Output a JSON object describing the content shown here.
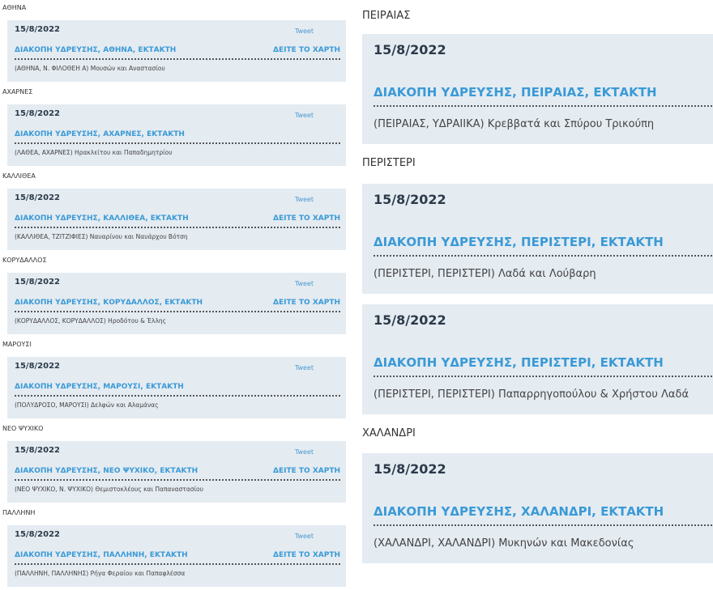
{
  "colors": {
    "accent": "#3a9ad6",
    "card_bg": "#e4ebf1",
    "date": "#2b3a4a"
  },
  "left": [
    {
      "area": "ΑΘΗΝΑ",
      "date": "15/8/2022",
      "tweet": "Tweet",
      "title": "ΔΙΑΚΟΠΗ ΥΔΡΕΥΣΗΣ, ΑΘΗΝΑ, ΕΚΤΑΚΤΗ",
      "map": "ΔΕΙΤΕ ΤΟ ΧΑΡΤΗ",
      "desc": "(ΑΘΗΝΑ, Ν. ΦΙΛΟΘΕΗ Α) Μουσών και Αναστασίου"
    },
    {
      "area": "ΑΧΑΡΝΕΣ",
      "date": "15/8/2022",
      "tweet": "Tweet",
      "title": "ΔΙΑΚΟΠΗ ΥΔΡΕΥΣΗΣ, ΑΧΑΡΝΕΣ, ΕΚΤΑΚΤΗ",
      "desc": "(ΛΑΘΕΑ, ΑΧΑΡΝΕΣ) Ηρακλείτου και Παπαδημητρίου"
    },
    {
      "area": "ΚΑΛΛΙΘΕΑ",
      "date": "15/8/2022",
      "tweet": "Tweet",
      "title": "ΔΙΑΚΟΠΗ ΥΔΡΕΥΣΗΣ, ΚΑΛΛΙΘΕΑ, ΕΚΤΑΚΤΗ",
      "map": "ΔΕΙΤΕ ΤΟ ΧΑΡΤΗ",
      "desc": "(ΚΑΛΛΙΘΕΑ, ΤΖΙΤΖΙΦΙΕΣ) Ναυαρίνου και Ναυάρχου Βότση"
    },
    {
      "area": "ΚΟΡΥΔΑΛΛΟΣ",
      "date": "15/8/2022",
      "tweet": "Tweet",
      "title": "ΔΙΑΚΟΠΗ ΥΔΡΕΥΣΗΣ, ΚΟΡΥΔΑΛΛΟΣ, ΕΚΤΑΚΤΗ",
      "map": "ΔΕΙΤΕ ΤΟ ΧΑΡΤΗ",
      "desc": "(ΚΟΡΥΔΑΛΛΟΣ, ΚΟΡΥΔΑΛΛΟΣ) Ηροδότου & Έλλης"
    },
    {
      "area": "ΜΑΡΟΥΣΙ",
      "date": "15/8/2022",
      "tweet": "Tweet",
      "title": "ΔΙΑΚΟΠΗ ΥΔΡΕΥΣΗΣ, ΜΑΡΟΥΣΙ, ΕΚΤΑΚΤΗ",
      "desc": "(ΠΟΛΥΔΡΟΣΟ, ΜΑΡΟΥΣΙ) Δελφών και Αλαμάνας"
    },
    {
      "area": "ΝΕΟ ΨΥΧΙΚΟ",
      "date": "15/8/2022",
      "tweet": "Tweet",
      "title": "ΔΙΑΚΟΠΗ ΥΔΡΕΥΣΗΣ, ΝΕΟ ΨΥΧΙΚΟ, ΕΚΤΑΚΤΗ",
      "map": "ΔΕΙΤΕ ΤΟ ΧΑΡΤΗ",
      "desc": "(ΝΕΟ ΨΥΧΙΚΟ, Ν. ΨΥΧΙΚΟ) Θεμιστοκλέους και Παπαναστασίου"
    },
    {
      "area": "ΠΑΛΛΗΝΗ",
      "date": "15/8/2022",
      "tweet": "Tweet",
      "title": "ΔΙΑΚΟΠΗ ΥΔΡΕΥΣΗΣ, ΠΑΛΛΗΝΗ, ΕΚΤΑΚΤΗ",
      "map": "ΔΕΙΤΕ ΤΟ ΧΑΡΤΗ",
      "desc": "(ΠΑΛΛΗΝΗ, ΠΑΛΛΗΝΗΣ) Ρήγα Φεραίου και Παπαφλέσσα"
    }
  ],
  "right": [
    {
      "area": "ΠΕΙΡΑΙΑΣ",
      "cards": [
        {
          "date": "15/8/2022",
          "title": "ΔΙΑΚΟΠΗ ΥΔΡΕΥΣΗΣ, ΠΕΙΡΑΙΑΣ, ΕΚΤΑΚΤΗ",
          "desc": "(ΠΕΙΡΑΙΑΣ, ΥΔΡΑΙΙΚΑ) Κρεββατά και Σπύρου Τρικούπη"
        }
      ]
    },
    {
      "area": "ΠΕΡΙΣΤΕΡΙ",
      "cards": [
        {
          "date": "15/8/2022",
          "title": "ΔΙΑΚΟΠΗ ΥΔΡΕΥΣΗΣ, ΠΕΡΙΣΤΕΡΙ, ΕΚΤΑΚΤΗ",
          "desc": "(ΠΕΡΙΣΤΕΡΙ, ΠΕΡΙΣΤΕΡΙ) Λαδά και Λούβαρη"
        },
        {
          "date": "15/8/2022",
          "title": "ΔΙΑΚΟΠΗ ΥΔΡΕΥΣΗΣ, ΠΕΡΙΣΤΕΡΙ, ΕΚΤΑΚΤΗ",
          "desc": "(ΠΕΡΙΣΤΕΡΙ, ΠΕΡΙΣΤΕΡΙ) Παπαρρηγοπούλου & Χρήστου Λαδά"
        }
      ]
    },
    {
      "area": "ΧΑΛΑΝΔΡΙ",
      "cards": [
        {
          "date": "15/8/2022",
          "title": "ΔΙΑΚΟΠΗ ΥΔΡΕΥΣΗΣ, ΧΑΛΑΝΔΡΙ, ΕΚΤΑΚΤΗ",
          "desc": "(ΧΑΛΑΝΔΡΙ, ΧΑΛΑΝΔΡΙ) Μυκηνών και Μακεδονίας"
        }
      ]
    }
  ]
}
